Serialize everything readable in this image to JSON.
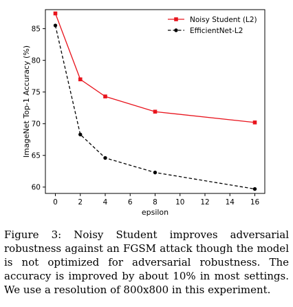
{
  "chart_data": {
    "type": "line",
    "x": [
      0,
      2,
      4,
      8,
      16
    ],
    "xticks": [
      "0",
      "2",
      "4",
      "6",
      "8",
      "10",
      "12",
      "14",
      "16"
    ],
    "yticks": [
      "60",
      "65",
      "70",
      "75",
      "80",
      "85"
    ],
    "xlabel": "epsilon",
    "ylabel": "ImageNet Top-1 Accuracy (%)",
    "xlim": [
      -0.8,
      16.8
    ],
    "ylim": [
      59.0,
      88.0
    ],
    "grid": false,
    "legend_position": "top-right",
    "series": [
      {
        "name": "Noisy Student (L2)",
        "values": [
          87.4,
          77.0,
          74.3,
          71.9,
          70.2
        ],
        "color": "#e8141d",
        "marker": "square",
        "dash": "solid"
      },
      {
        "name": "EfficientNet-L2",
        "values": [
          85.5,
          68.3,
          64.6,
          62.3,
          59.7
        ],
        "color": "#000000",
        "marker": "circle",
        "dash": "dashed"
      }
    ]
  },
  "caption": "Figure 3: Noisy Student improves adversarial robustness against an FGSM attack though the model is not optimized for adversarial robustness. The accuracy is improved by about 10% in most settings. We use a resolution of 800x800 in this experiment."
}
